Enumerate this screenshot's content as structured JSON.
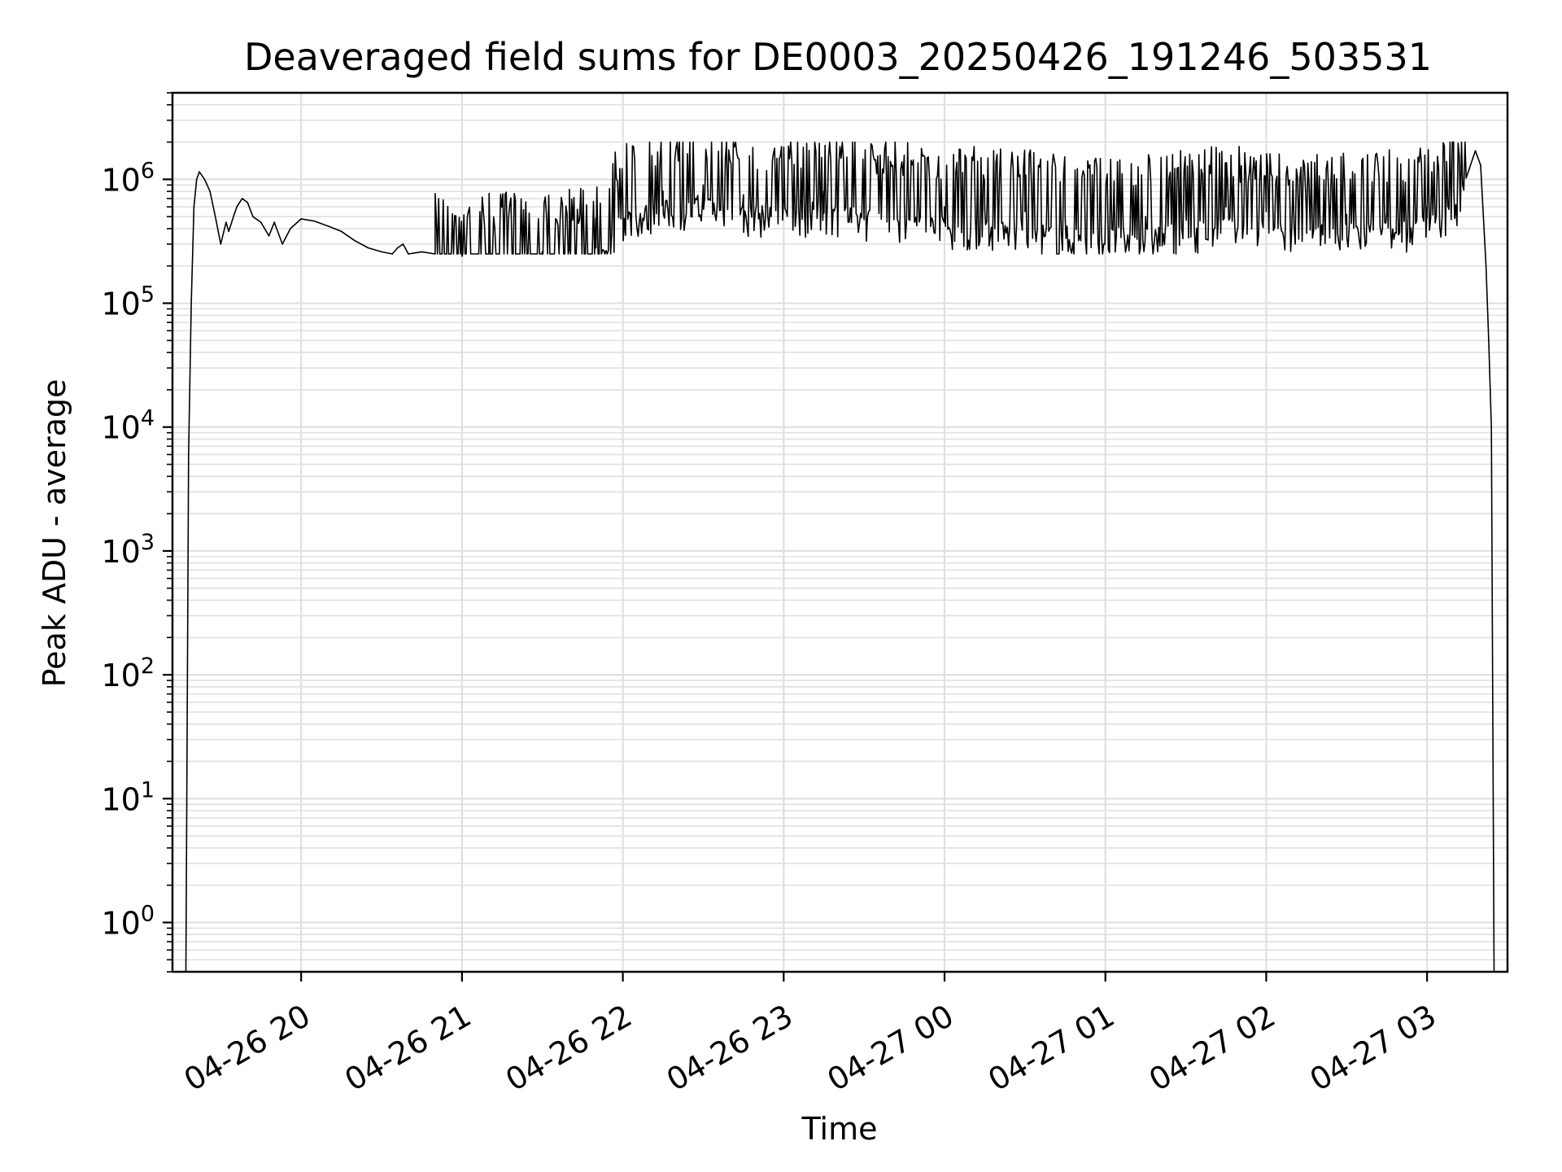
{
  "chart_data": {
    "type": "line",
    "title": "Deaveraged field sums for DE0003_20250426_191246_503531",
    "xlabel": "Time",
    "ylabel": "Peak ADU - average",
    "yscale": "log",
    "ylim": [
      0.4,
      5000000
    ],
    "xlim": [
      "2025-04-26 19:12",
      "2025-04-27 03:30"
    ],
    "grid": true,
    "line_color": "#000000",
    "grid_color": "#e0e0e0",
    "x_ticks": [
      {
        "value": "2025-04-26 20:00",
        "label": "04-26 20"
      },
      {
        "value": "2025-04-26 21:00",
        "label": "04-26 21"
      },
      {
        "value": "2025-04-26 22:00",
        "label": "04-26 22"
      },
      {
        "value": "2025-04-26 23:00",
        "label": "04-26 23"
      },
      {
        "value": "2025-04-27 00:00",
        "label": "04-27 00"
      },
      {
        "value": "2025-04-27 01:00",
        "label": "04-27 01"
      },
      {
        "value": "2025-04-27 02:00",
        "label": "04-27 02"
      },
      {
        "value": "2025-04-27 03:00",
        "label": "04-27 03"
      }
    ],
    "y_ticks": [
      {
        "value": 1,
        "base": "10",
        "exp": "0"
      },
      {
        "value": 10,
        "base": "10",
        "exp": "1"
      },
      {
        "value": 100,
        "base": "10",
        "exp": "2"
      },
      {
        "value": 1000,
        "base": "10",
        "exp": "3"
      },
      {
        "value": 10000,
        "base": "10",
        "exp": "4"
      },
      {
        "value": 100000,
        "base": "10",
        "exp": "5"
      },
      {
        "value": 1000000,
        "base": "10",
        "exp": "6"
      }
    ],
    "series": [
      {
        "x": [
          "2025-04-26 19:17",
          "2025-04-26 19:18",
          "2025-04-26 19:19",
          "2025-04-26 19:20",
          "2025-04-26 19:21",
          "2025-04-26 19:22",
          "2025-04-26 19:24",
          "2025-04-26 19:26",
          "2025-04-26 19:28",
          "2025-04-26 19:30",
          "2025-04-26 19:32",
          "2025-04-26 19:33",
          "2025-04-26 19:35",
          "2025-04-26 19:36",
          "2025-04-26 19:38",
          "2025-04-26 19:40",
          "2025-04-26 19:42",
          "2025-04-26 19:45",
          "2025-04-26 19:48",
          "2025-04-26 19:50",
          "2025-04-26 19:53",
          "2025-04-26 19:56",
          "2025-04-26 20:00",
          "2025-04-26 20:05",
          "2025-04-26 20:10",
          "2025-04-26 20:15",
          "2025-04-26 20:20",
          "2025-04-26 20:25",
          "2025-04-26 20:30",
          "2025-04-26 20:34",
          "2025-04-26 20:36",
          "2025-04-26 20:38",
          "2025-04-26 20:40",
          "2025-04-26 20:45",
          "2025-04-26 20:50",
          "2025-04-26 20:55",
          "2025-04-26 21:00",
          "2025-04-26 21:10",
          "2025-04-26 21:20",
          "2025-04-26 21:30",
          "2025-04-26 21:40",
          "2025-04-26 21:50",
          "2025-04-26 22:00",
          "2025-04-26 22:15",
          "2025-04-26 22:30",
          "2025-04-26 22:45",
          "2025-04-26 23:00",
          "2025-04-26 23:15",
          "2025-04-26 23:30",
          "2025-04-26 23:45",
          "2025-04-27 00:00",
          "2025-04-27 00:15",
          "2025-04-27 00:30",
          "2025-04-27 00:45",
          "2025-04-27 01:00",
          "2025-04-27 01:15",
          "2025-04-27 01:30",
          "2025-04-27 01:45",
          "2025-04-27 02:00",
          "2025-04-27 02:15",
          "2025-04-27 02:30",
          "2025-04-27 02:45",
          "2025-04-27 03:00",
          "2025-04-27 03:10",
          "2025-04-27 03:18",
          "2025-04-27 03:20",
          "2025-04-27 03:22",
          "2025-04-27 03:23",
          "2025-04-27 03:24",
          "2025-04-27 03:25"
        ],
        "y": [
          0.4,
          6000,
          100000,
          600000,
          1000000,
          1150000,
          1000000,
          800000,
          500000,
          300000,
          450000,
          380000,
          520000,
          600000,
          700000,
          650000,
          500000,
          450000,
          350000,
          450000,
          300000,
          400000,
          480000,
          460000,
          420000,
          380000,
          320000,
          280000,
          260000,
          250000,
          280000,
          300000,
          250000,
          260000,
          250000,
          250000,
          240000,
          250000,
          250000,
          260000,
          270000,
          280000,
          700000,
          800000,
          900000,
          750000,
          700000,
          800000,
          700000,
          650000,
          600000,
          580000,
          550000,
          500000,
          480000,
          500000,
          550000,
          600000,
          550000,
          500000,
          520000,
          550000,
          600000,
          800000,
          1700000,
          1300000,
          200000,
          50000,
          10000,
          0.4
        ],
        "spike_envelope": {
          "x_range": [
            "2025-04-26 20:50",
            "2025-04-27 03:15"
          ],
          "low": 250000,
          "high": 2000000
        }
      }
    ]
  }
}
